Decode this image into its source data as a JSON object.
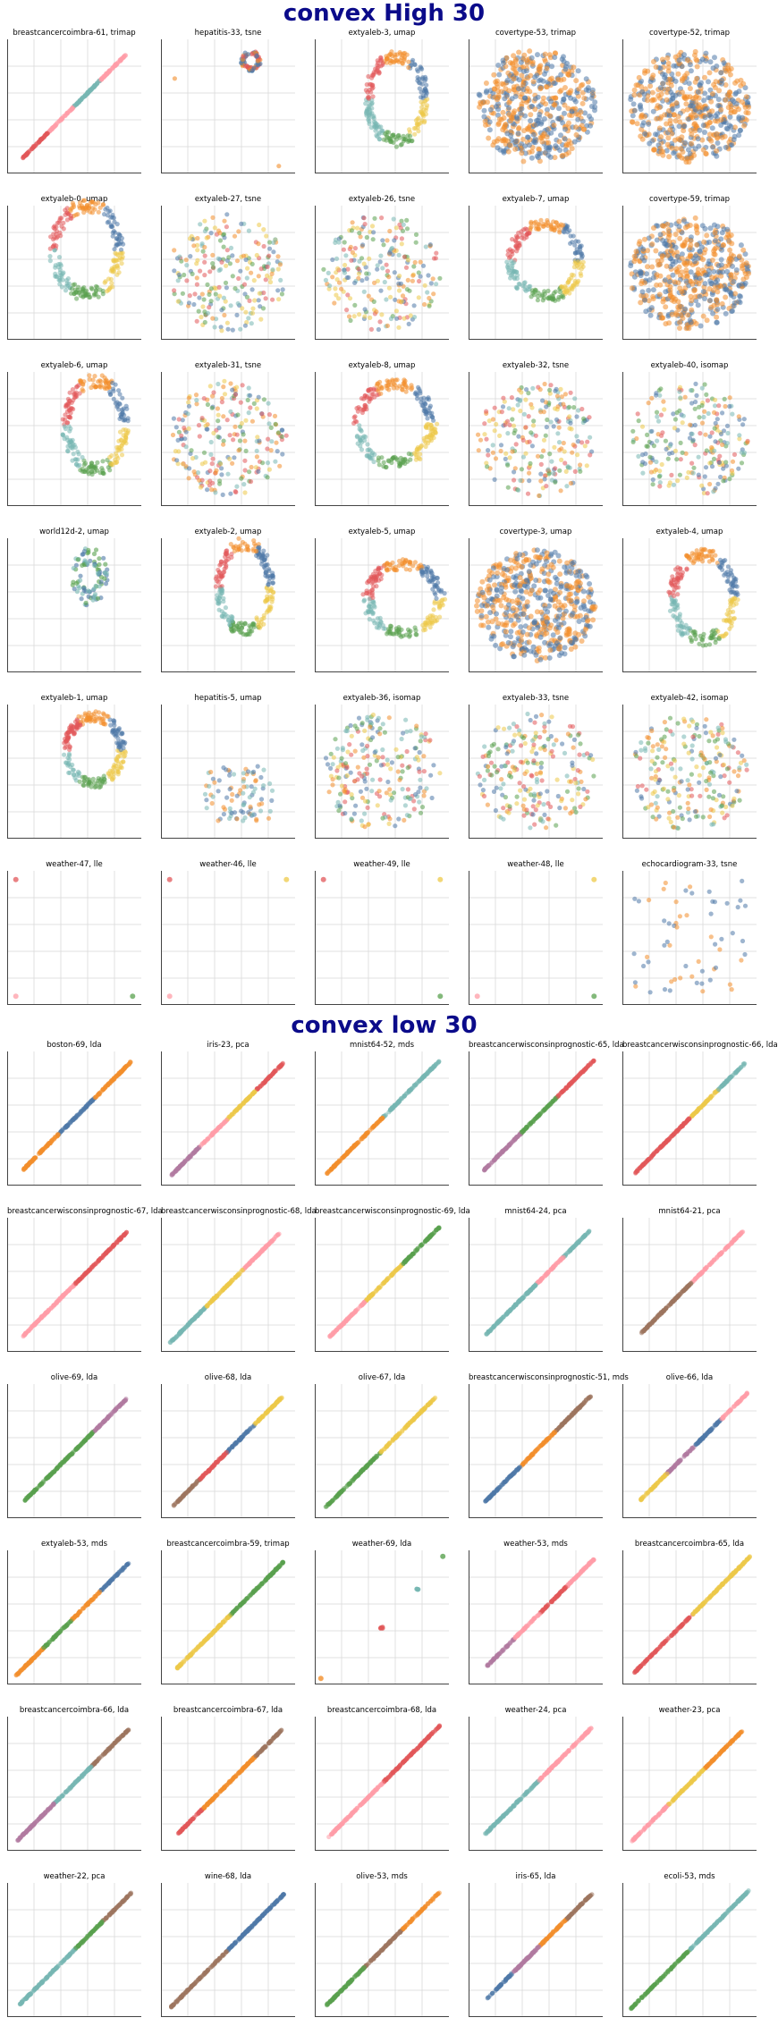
{
  "sections": [
    {
      "title": "convex High 30",
      "plots": [
        {
          "title": "breastcancercoimbra-61, trimap",
          "kind": "diag"
        },
        {
          "title": "hepatitis-33, tsne",
          "kind": "cluster"
        },
        {
          "title": "extyaleb-3, umap",
          "kind": "ring"
        },
        {
          "title": "covertype-53, trimap",
          "kind": "blob"
        },
        {
          "title": "covertype-52, trimap",
          "kind": "blob"
        },
        {
          "title": "extyaleb-0, umap",
          "kind": "ring"
        },
        {
          "title": "extyaleb-27, tsne",
          "kind": "spread"
        },
        {
          "title": "extyaleb-26, tsne",
          "kind": "spread"
        },
        {
          "title": "extyaleb-7, umap",
          "kind": "ring"
        },
        {
          "title": "covertype-59, trimap",
          "kind": "blob"
        },
        {
          "title": "extyaleb-6, umap",
          "kind": "ring"
        },
        {
          "title": "extyaleb-31, tsne",
          "kind": "spread"
        },
        {
          "title": "extyaleb-8, umap",
          "kind": "ring"
        },
        {
          "title": "extyaleb-32, tsne",
          "kind": "spread"
        },
        {
          "title": "extyaleb-40, isomap",
          "kind": "spread"
        },
        {
          "title": "world12d-2, umap",
          "kind": "small"
        },
        {
          "title": "extyaleb-2, umap",
          "kind": "ring"
        },
        {
          "title": "extyaleb-5, umap",
          "kind": "ring"
        },
        {
          "title": "covertype-3, umap",
          "kind": "blob"
        },
        {
          "title": "extyaleb-4, umap",
          "kind": "ring"
        },
        {
          "title": "extyaleb-1, umap",
          "kind": "ring"
        },
        {
          "title": "hepatitis-5, umap",
          "kind": "scatterlow"
        },
        {
          "title": "extyaleb-36, isomap",
          "kind": "spread"
        },
        {
          "title": "extyaleb-33, tsne",
          "kind": "spread"
        },
        {
          "title": "extyaleb-42, isomap",
          "kind": "spread"
        },
        {
          "title": "weather-47, lle",
          "kind": "corners"
        },
        {
          "title": "weather-46, lle",
          "kind": "corners"
        },
        {
          "title": "weather-49, lle",
          "kind": "corners"
        },
        {
          "title": "weather-48, lle",
          "kind": "corners"
        },
        {
          "title": "echocardiogram-33, tsne",
          "kind": "grid"
        }
      ]
    },
    {
      "title": "convex low 30",
      "plots": [
        {
          "title": "boston-69, lda",
          "kind": "diag"
        },
        {
          "title": "iris-23, pca",
          "kind": "diag"
        },
        {
          "title": "mnist64-52, mds",
          "kind": "diag"
        },
        {
          "title": "breastcancerwisconsinprognostic-65, lda",
          "kind": "diag"
        },
        {
          "title": "breastcancerwisconsinprognostic-66, lda",
          "kind": "diag"
        },
        {
          "title": "breastcancerwisconsinprognostic-67, lda",
          "kind": "diag"
        },
        {
          "title": "breastcancerwisconsinprognostic-68, lda",
          "kind": "diag"
        },
        {
          "title": "breastcancerwisconsinprognostic-69, lda",
          "kind": "diag"
        },
        {
          "title": "mnist64-24, pca",
          "kind": "diag"
        },
        {
          "title": "mnist64-21, pca",
          "kind": "diag"
        },
        {
          "title": "olive-69, lda",
          "kind": "diag"
        },
        {
          "title": "olive-68, lda",
          "kind": "diag"
        },
        {
          "title": "olive-67, lda",
          "kind": "diag"
        },
        {
          "title": "breastcancerwisconsinprognostic-51, mds",
          "kind": "diag"
        },
        {
          "title": "olive-66, lda",
          "kind": "diag"
        },
        {
          "title": "extyaleb-53, mds",
          "kind": "diag"
        },
        {
          "title": "breastcancercoimbra-59, trimap",
          "kind": "diag"
        },
        {
          "title": "weather-69, lda",
          "kind": "sparse"
        },
        {
          "title": "weather-53, mds",
          "kind": "diag"
        },
        {
          "title": "breastcancercoimbra-65, lda",
          "kind": "diag"
        },
        {
          "title": "breastcancercoimbra-66, lda",
          "kind": "diag"
        },
        {
          "title": "breastcancercoimbra-67, lda",
          "kind": "diag"
        },
        {
          "title": "breastcancercoimbra-68, lda",
          "kind": "diag"
        },
        {
          "title": "weather-24, pca",
          "kind": "diag"
        },
        {
          "title": "weather-23, pca",
          "kind": "diag"
        },
        {
          "title": "weather-22, pca",
          "kind": "diag"
        },
        {
          "title": "wine-68, lda",
          "kind": "diag"
        },
        {
          "title": "olive-53, mds",
          "kind": "diag"
        },
        {
          "title": "iris-65, lda",
          "kind": "diag"
        },
        {
          "title": "ecoli-53, mds",
          "kind": "diag"
        }
      ]
    }
  ],
  "colors": {
    "title": "#0b0b8a",
    "palette": [
      "#4e79a7",
      "#f28e2b",
      "#e15759",
      "#76b7b2",
      "#59a14f",
      "#edc948",
      "#b07aa1",
      "#ff9da7",
      "#9c755f"
    ],
    "grid": "#d9d9d9",
    "axis": "#444444"
  },
  "chart_data": {
    "type": "scatter",
    "note_columns": 5,
    "grid": true
  }
}
